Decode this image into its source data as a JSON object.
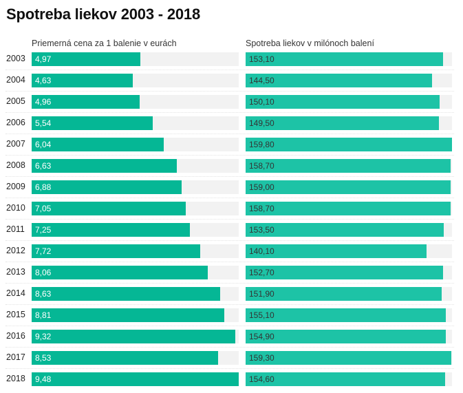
{
  "chart_data": {
    "type": "bar",
    "title": "Spotreba liekov 2003 - 2018",
    "categories": [
      "2003",
      "2004",
      "2005",
      "2006",
      "2007",
      "2008",
      "2009",
      "2010",
      "2011",
      "2012",
      "2013",
      "2014",
      "2015",
      "2016",
      "2017",
      "2018"
    ],
    "series": [
      {
        "name": "Priemerná cena za 1 balenie v eurách",
        "values": [
          4.97,
          4.63,
          4.96,
          5.54,
          6.04,
          6.63,
          6.88,
          7.05,
          7.25,
          7.72,
          8.06,
          8.63,
          8.81,
          9.32,
          8.53,
          9.48
        ],
        "labels": [
          "4,97",
          "4,63",
          "4,96",
          "5,54",
          "6,04",
          "6,63",
          "6,88",
          "7,05",
          "7,25",
          "7,72",
          "8,06",
          "8,63",
          "8,81",
          "9,32",
          "8,53",
          "9,48"
        ],
        "xlim": [
          0,
          9.48
        ],
        "color": "#05b795"
      },
      {
        "name": "Spotreba liekov v milónoch balení",
        "values": [
          153.1,
          144.5,
          150.1,
          149.5,
          159.8,
          158.7,
          159.0,
          158.7,
          153.5,
          140.1,
          152.7,
          151.9,
          155.1,
          154.9,
          159.3,
          154.6
        ],
        "labels": [
          "153,10",
          "144,50",
          "150,10",
          "149,50",
          "159,80",
          "158,70",
          "159,00",
          "158,70",
          "153,50",
          "140,10",
          "152,70",
          "151,90",
          "155,10",
          "154,90",
          "159,30",
          "154,60"
        ],
        "xlim": [
          0,
          159.8
        ],
        "color": "#1dc3a6"
      }
    ],
    "orientation": "horizontal",
    "layout": "small-multiples",
    "grid": false,
    "legend": "none",
    "colors": {
      "track": "#f2f2f2",
      "left_label": "#ffffff",
      "right_label": "#333333"
    }
  }
}
